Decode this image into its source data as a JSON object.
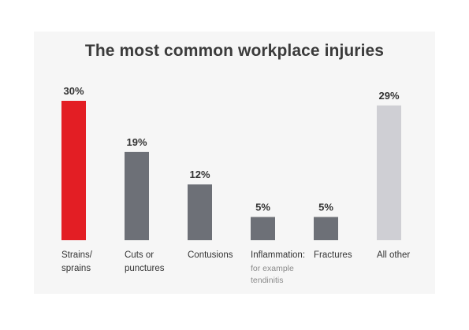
{
  "chart_data": {
    "type": "bar",
    "title": "The most common workplace injuries",
    "xlabel": "",
    "ylabel": "",
    "ylim": [
      0,
      30
    ],
    "grid": false,
    "legend": "none",
    "categories": [
      {
        "lines": [
          "Strains/",
          "sprains"
        ],
        "sub": []
      },
      {
        "lines": [
          "Cuts or",
          "punctures"
        ],
        "sub": []
      },
      {
        "lines": [
          "Contusions"
        ],
        "sub": []
      },
      {
        "lines": [
          "Inflammation:"
        ],
        "sub": [
          "for example",
          "tendinitis"
        ]
      },
      {
        "lines": [
          "Fractures"
        ],
        "sub": []
      },
      {
        "lines": [
          "All other"
        ],
        "sub": []
      }
    ],
    "values": [
      30,
      19,
      12,
      5,
      5,
      29
    ],
    "value_labels": [
      "30%",
      "19%",
      "12%",
      "5%",
      "5%",
      "29%"
    ],
    "colors": [
      "#e31e24",
      "#6d7077",
      "#6d7077",
      "#6d7077",
      "#6d7077",
      "#cfcfd4"
    ]
  }
}
